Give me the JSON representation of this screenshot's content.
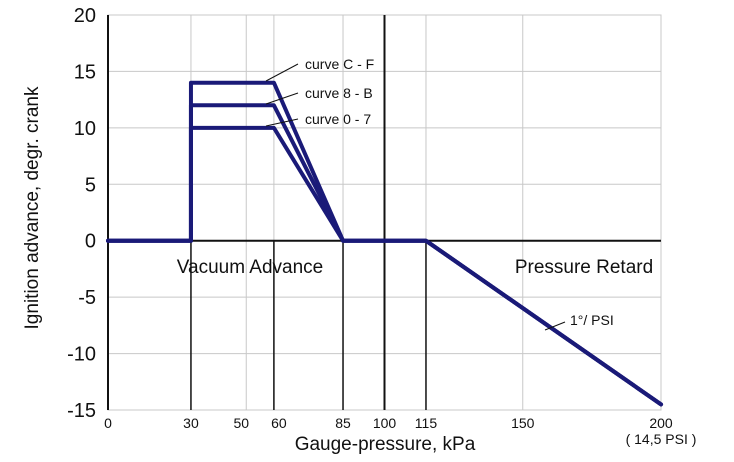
{
  "chart_data": {
    "type": "line",
    "xlabel": "Gauge-pressure, kPa",
    "ylabel": "Ignition advance, degr. crank",
    "xlim": [
      0,
      200
    ],
    "ylim": [
      -15,
      20
    ],
    "x_ticks": [
      "0",
      "30",
      "50",
      "60",
      "85",
      "100",
      "115",
      "150",
      "200"
    ],
    "x_tick_values": [
      0,
      30,
      50,
      60,
      85,
      100,
      115,
      150,
      200
    ],
    "x_tick_sublabel": "( 14,5 PSI )",
    "y_ticks": [
      20,
      15,
      10,
      5,
      0,
      -5,
      -10,
      -15
    ],
    "grid": true,
    "colors": {
      "series": "#1a1a78",
      "grid": "#c8c8c8",
      "axis": "#111111"
    },
    "series": [
      {
        "name": "curve C - F",
        "x": [
          0,
          30,
          30,
          60,
          85,
          115,
          200
        ],
        "y": [
          0,
          0,
          14,
          14,
          0,
          0,
          -14.5
        ]
      },
      {
        "name": "curve 8 - B",
        "x": [
          0,
          30,
          30,
          60,
          85,
          115,
          200
        ],
        "y": [
          0,
          0,
          12,
          12,
          0,
          0,
          -14.5
        ]
      },
      {
        "name": "curve 0 - 7",
        "x": [
          0,
          30,
          30,
          60,
          85,
          115,
          200
        ],
        "y": [
          0,
          0,
          10,
          10,
          0,
          0,
          -14.5
        ]
      }
    ],
    "region_labels": [
      "Vacuum Advance",
      "Pressure Retard"
    ],
    "slope_label": "1°/ PSI"
  }
}
